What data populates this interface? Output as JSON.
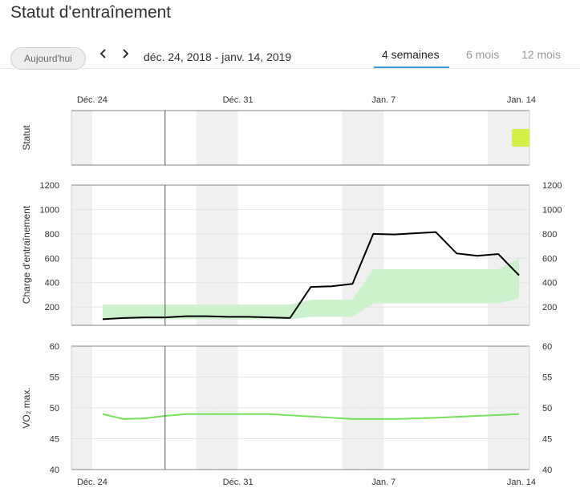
{
  "page": {
    "title": "Statut d'entraînement"
  },
  "toolbar": {
    "today_label": "Aujourd'hui",
    "prev_icon": "chevron-left-icon",
    "next_icon": "chevron-right-icon",
    "date_range": "déc. 24, 2018 - janv. 14, 2019",
    "tabs": [
      {
        "label": "4 semaines",
        "active": true
      },
      {
        "label": "6 mois",
        "active": false
      },
      {
        "label": "12 mois",
        "active": false
      }
    ],
    "accent_color": "#3e9bd6"
  },
  "chart_data": {
    "type": "line",
    "x_date_labels": [
      "Déc. 24",
      "Déc. 31",
      "Jan. 7",
      "Jan. 14"
    ],
    "x_range": [
      "2018-12-23",
      "2019-01-14"
    ],
    "weekend_shading": true,
    "current_day_marker": "2018-12-27",
    "panels": [
      {
        "id": "statut",
        "ylabel": "Statut",
        "markers": [
          {
            "date": "2019-01-13",
            "color": "#d4ef4a"
          }
        ]
      },
      {
        "id": "charge",
        "ylabel": "Charge d'entraînement",
        "ylim": [
          0,
          1200
        ],
        "yticks": [
          200,
          400,
          600,
          800,
          1000,
          1200
        ],
        "grid": true,
        "series": [
          {
            "color": "#000000",
            "x": [
              "2018-12-24",
              "2018-12-25",
              "2018-12-26",
              "2018-12-27",
              "2018-12-28",
              "2018-12-29",
              "2018-12-30",
              "2018-12-31",
              "2019-01-01",
              "2019-01-02",
              "2019-01-03",
              "2019-01-04",
              "2019-01-05",
              "2019-01-06",
              "2019-01-07",
              "2019-01-08",
              "2019-01-09",
              "2019-01-10",
              "2019-01-11",
              "2019-01-12",
              "2019-01-13"
            ],
            "values": [
              100,
              110,
              115,
              115,
              125,
              125,
              120,
              120,
              115,
              110,
              365,
              370,
              390,
              800,
              795,
              805,
              815,
              640,
              620,
              635,
              460
            ]
          }
        ],
        "band": {
          "color": "#ccf2cc",
          "x": [
            "2018-12-24",
            "2019-01-02",
            "2019-01-03",
            "2019-01-05",
            "2019-01-06",
            "2019-01-12",
            "2019-01-13"
          ],
          "lower": [
            100,
            100,
            120,
            120,
            230,
            230,
            270
          ],
          "upper": [
            220,
            220,
            260,
            260,
            510,
            510,
            600
          ]
        }
      },
      {
        "id": "vo2",
        "ylabel": "VO₂ max.",
        "ylim": [
          40,
          60
        ],
        "yticks": [
          40,
          45,
          50,
          55,
          60
        ],
        "grid": true,
        "series": [
          {
            "color": "#78e05a",
            "x": [
              "2018-12-24",
              "2018-12-25",
              "2018-12-26",
              "2018-12-27",
              "2018-12-28",
              "2018-12-30",
              "2019-01-01",
              "2019-01-03",
              "2019-01-05",
              "2019-01-07",
              "2019-01-09",
              "2019-01-11",
              "2019-01-13"
            ],
            "values": [
              49,
              48.2,
              48.3,
              48.7,
              49,
              49,
              49,
              48.6,
              48.2,
              48.2,
              48.4,
              48.7,
              49
            ]
          }
        ]
      }
    ]
  }
}
